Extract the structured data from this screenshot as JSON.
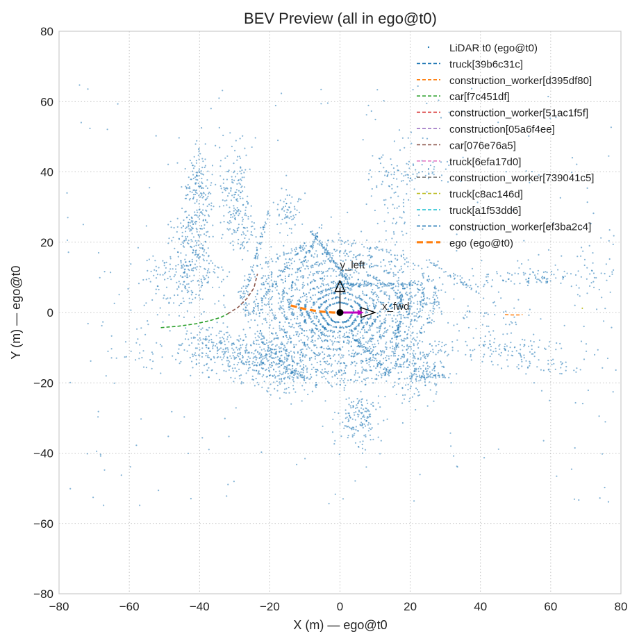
{
  "chart_data": {
    "type": "scatter",
    "title": "BEV Preview (all in ego@t0)",
    "xlabel": "X (m) — ego@t0",
    "ylabel": "Y (m) — ego@t0",
    "xlim": [
      -80,
      80
    ],
    "ylim": [
      -80,
      80
    ],
    "xticks": [
      -80,
      -60,
      -40,
      -20,
      0,
      20,
      40,
      60,
      80
    ],
    "yticks": [
      -80,
      -60,
      -40,
      -20,
      0,
      20,
      40,
      60,
      80
    ],
    "xtick_labels": [
      "−80",
      "−60",
      "−40",
      "−20",
      "0",
      "20",
      "40",
      "60",
      "80"
    ],
    "ytick_labels": [
      "−80",
      "−60",
      "−40",
      "−20",
      "0",
      "20",
      "40",
      "60",
      "80"
    ],
    "grid": true,
    "legend_position": "top-right",
    "colors": {
      "lidar": "#1f77b4",
      "ego": "#ff7f0e",
      "axes_marker": "#000000",
      "fwd_arrow": "#c000c0"
    },
    "lidar": {
      "name": "LiDAR t0 (ego@t0)",
      "rings": [
        3,
        4.5,
        6,
        7.5,
        9,
        11,
        13,
        15.5,
        18,
        21
      ],
      "clusters": [
        {
          "cx": -25,
          "cy": -12,
          "sx": 8,
          "sy": 3,
          "n": 260
        },
        {
          "cx": -16,
          "cy": -16,
          "sx": 6,
          "sy": 4,
          "n": 220
        },
        {
          "cx": 22,
          "cy": -16,
          "sx": 4,
          "sy": 4,
          "n": 200
        },
        {
          "cx": 5,
          "cy": -30,
          "sx": 3,
          "sy": 4,
          "n": 160
        },
        {
          "cx": -45,
          "cy": 10,
          "sx": 6,
          "sy": 5,
          "n": 200
        },
        {
          "cx": -42,
          "cy": 22,
          "sx": 3,
          "sy": 6,
          "n": 160
        },
        {
          "cx": -40,
          "cy": 35,
          "sx": 2,
          "sy": 6,
          "n": 140
        },
        {
          "cx": -30,
          "cy": 35,
          "sx": 2,
          "sy": 6,
          "n": 120
        },
        {
          "cx": -28,
          "cy": 25,
          "sx": 2,
          "sy": 4,
          "n": 80
        },
        {
          "cx": -15,
          "cy": 28,
          "sx": 2,
          "sy": 3,
          "n": 60
        },
        {
          "cx": 16,
          "cy": 32,
          "sx": 4,
          "sy": 10,
          "n": 90
        },
        {
          "cx": 20,
          "cy": 40,
          "sx": 6,
          "sy": 2,
          "n": 60
        },
        {
          "cx": 45,
          "cy": -10,
          "sx": 10,
          "sy": 1.5,
          "n": 120
        },
        {
          "cx": 58,
          "cy": -15,
          "sx": 8,
          "sy": 1.5,
          "n": 50
        },
        {
          "cx": 55,
          "cy": 10,
          "sx": 15,
          "sy": 1.5,
          "n": 120
        },
        {
          "cx": 40,
          "cy": 0,
          "sx": 8,
          "sy": 4,
          "n": 50
        },
        {
          "cx": -38,
          "cy": -10,
          "sx": 6,
          "sy": 3,
          "n": 120
        },
        {
          "cx": 25,
          "cy": 5,
          "sx": 3,
          "sy": 3,
          "n": 40
        },
        {
          "cx": 70,
          "cy": 15,
          "sx": 10,
          "sy": 8,
          "n": 50
        },
        {
          "cx": -60,
          "cy": -10,
          "sx": 6,
          "sy": 5,
          "n": 30
        }
      ],
      "lines": [
        {
          "x1": -15,
          "y1": 5,
          "x2": -5,
          "y2": 25,
          "n": 60
        },
        {
          "x1": -25,
          "y1": 0,
          "x2": -10,
          "y2": 20,
          "n": 60
        },
        {
          "x1": -27,
          "y1": 5,
          "x2": -20,
          "y2": 30,
          "n": 60
        },
        {
          "x1": -8,
          "y1": 23,
          "x2": 3,
          "y2": 8,
          "n": 80
        },
        {
          "x1": 0,
          "y1": 8,
          "x2": 24,
          "y2": 8,
          "n": 90
        },
        {
          "x1": 18,
          "y1": 8,
          "x2": 16,
          "y2": -10,
          "n": 70
        },
        {
          "x1": 3,
          "y1": -6,
          "x2": 15,
          "y2": -18,
          "n": 60
        },
        {
          "x1": 25,
          "y1": 15,
          "x2": 40,
          "y2": 5,
          "n": 40
        },
        {
          "x1": 20,
          "y1": -18,
          "x2": 30,
          "y2": -18,
          "n": 40
        }
      ]
    },
    "series": [
      {
        "name": "truck[39b6c31c]",
        "color": "#1f77b4",
        "x": [],
        "y": []
      },
      {
        "name": "construction_worker[d395df80]",
        "color": "#ff7f0e",
        "x": [
          47,
          49,
          51,
          52
        ],
        "y": [
          -0.6,
          -0.7,
          -0.7,
          -0.6
        ]
      },
      {
        "name": "car[f7c451df]",
        "color": "#2ca02c",
        "x": [
          -51,
          -46,
          -41,
          -37,
          -34,
          -32
        ],
        "y": [
          -4.3,
          -3.9,
          -3.2,
          -2.3,
          -1.4,
          -0.4
        ]
      },
      {
        "name": "construction_worker[51ac1f5f]",
        "color": "#d62728",
        "x": [],
        "y": []
      },
      {
        "name": "construction[05a6f4ee]",
        "color": "#9467bd",
        "x": [],
        "y": []
      },
      {
        "name": "car[076e76a5]",
        "color": "#8c564b",
        "x": [
          -32,
          -29,
          -26.5,
          -24.5,
          -23.5
        ],
        "y": [
          -0.4,
          1.5,
          4,
          7,
          11
        ]
      },
      {
        "name": "truck[6efa17d0]",
        "color": "#e377c2",
        "x": [],
        "y": []
      },
      {
        "name": "construction_worker[739041c5]",
        "color": "#7f7f7f",
        "x": [],
        "y": []
      },
      {
        "name": "truck[c8ac146d]",
        "color": "#bcbd22",
        "x": [
          69,
          69
        ],
        "y": [
          1,
          1.4
        ]
      },
      {
        "name": "truck[a1f53dd6]",
        "color": "#17becf",
        "x": [],
        "y": []
      },
      {
        "name": "construction_worker[ef3ba2c4]",
        "color": "#1f77b4",
        "x": [],
        "y": []
      },
      {
        "name": "ego (ego@t0)",
        "color": "#ff7f0e",
        "x": [
          -14,
          -10,
          -6,
          -2,
          0
        ],
        "y": [
          2,
          1,
          0.3,
          0,
          0
        ]
      }
    ],
    "annotations": [
      {
        "text": "y_left",
        "x": 0,
        "y": 12.5
      },
      {
        "text": "x_fwd",
        "x": 12,
        "y": 0.8
      }
    ]
  }
}
